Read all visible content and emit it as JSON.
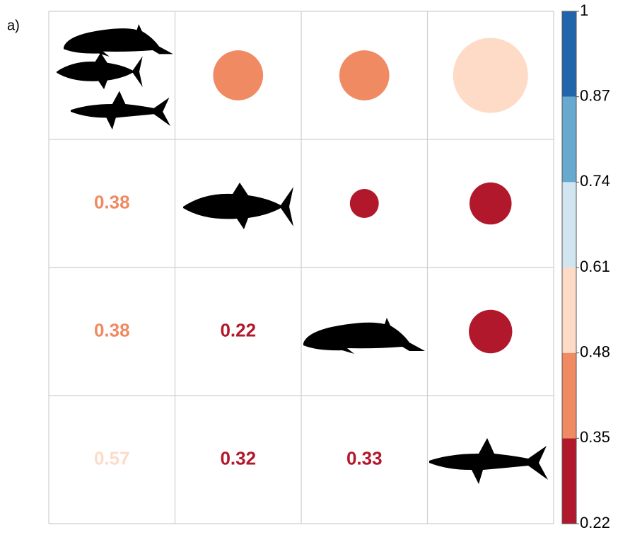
{
  "panel_label": "a)",
  "chart_data": {
    "type": "corrplot",
    "matrix": [
      [
        null,
        0.38,
        0.38,
        0.57
      ],
      [
        0.38,
        null,
        0.22,
        0.32
      ],
      [
        0.38,
        0.22,
        null,
        0.33
      ],
      [
        0.57,
        0.32,
        0.33,
        null
      ]
    ],
    "colorbar": {
      "ticks": [
        0.22,
        0.35,
        0.48,
        0.61,
        0.74,
        0.87,
        1
      ],
      "colors": [
        "#b2182b",
        "#ef8a62",
        "#fddbc7",
        "#d1e5f0",
        "#67a9cf",
        "#2166ac"
      ]
    },
    "clim": [
      0.22,
      1
    ]
  }
}
